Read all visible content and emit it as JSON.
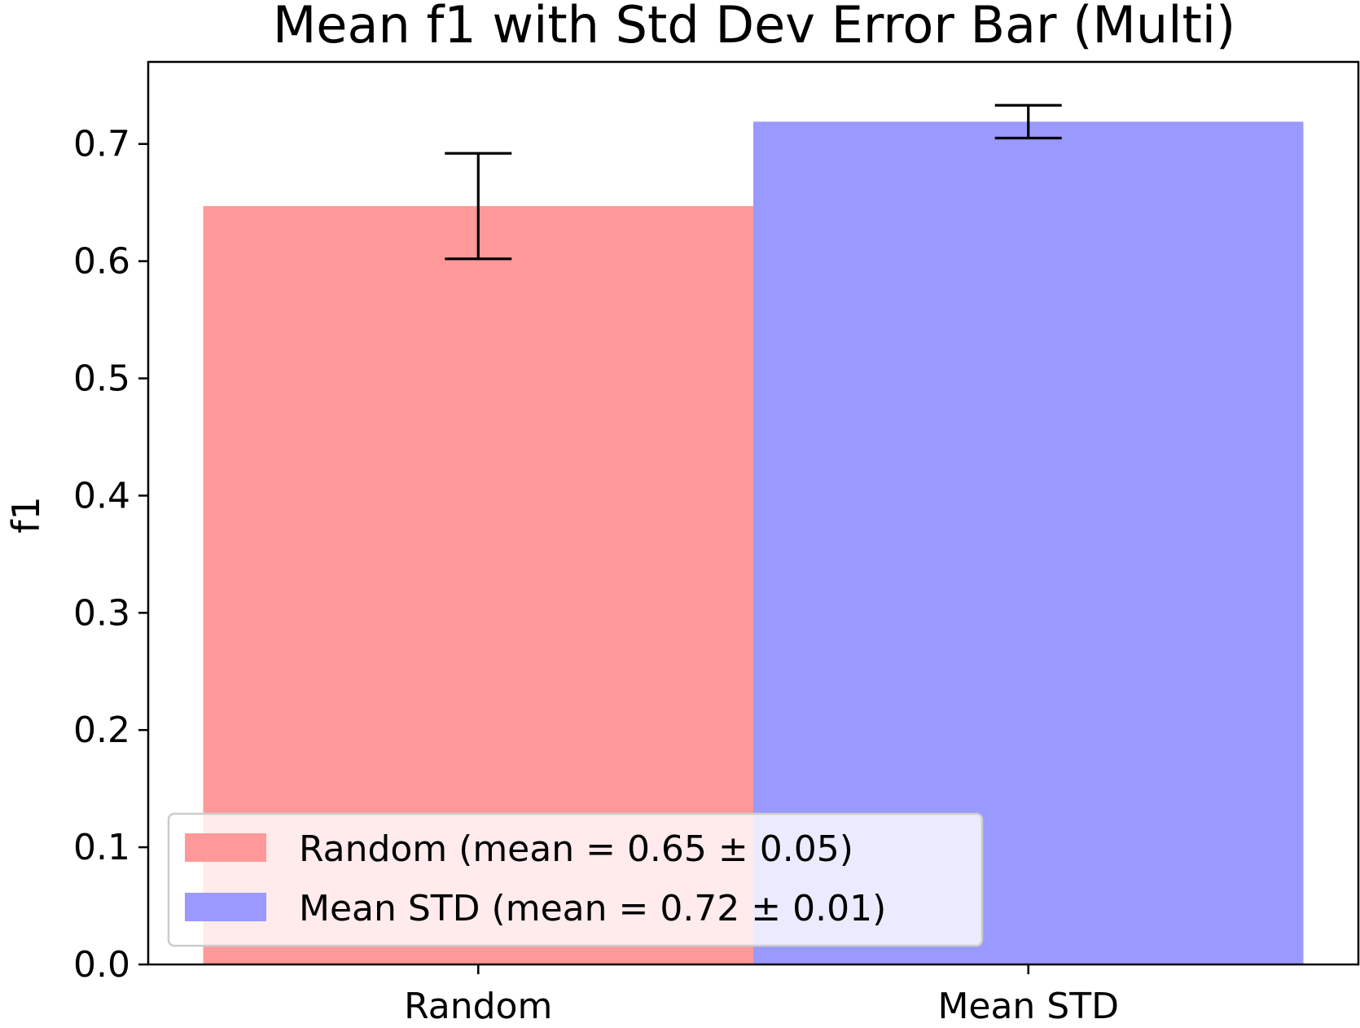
{
  "chart_data": {
    "type": "bar",
    "title": "Mean f1 with Std Dev Error Bar (Multi)",
    "xlabel": "",
    "ylabel": "f1",
    "categories": [
      "Random",
      "Mean STD"
    ],
    "values": [
      0.647,
      0.719
    ],
    "errors": [
      0.045,
      0.014
    ],
    "colors": [
      "#ff9999",
      "#9999ff"
    ],
    "ylim": [
      0,
      0.77
    ],
    "yticks": [
      0.0,
      0.1,
      0.2,
      0.3,
      0.4,
      0.5,
      0.6,
      0.7
    ],
    "ytick_labels": [
      "0.0",
      "0.1",
      "0.2",
      "0.3",
      "0.4",
      "0.5",
      "0.6",
      "0.7"
    ],
    "grid": false,
    "legend": {
      "placement": "lower-left",
      "entries": [
        {
          "label": "Random (mean = 0.65 ± 0.05)",
          "color": "#ff9999"
        },
        {
          "label": "Mean STD (mean = 0.72 ± 0.01)",
          "color": "#9999ff"
        }
      ]
    }
  }
}
